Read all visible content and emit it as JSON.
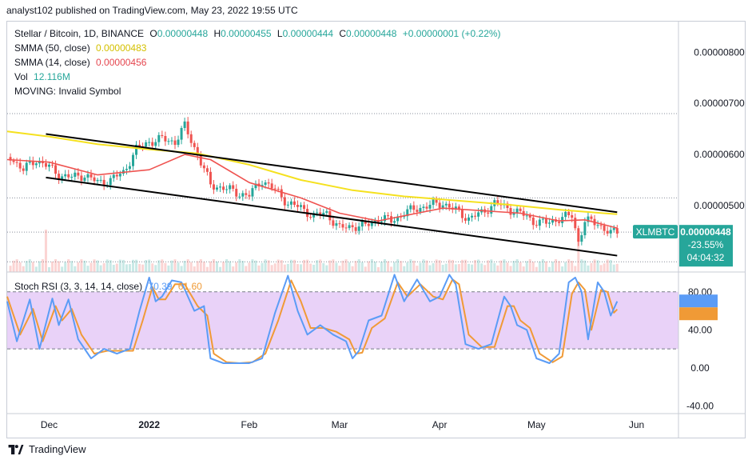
{
  "header": {
    "text": "analyst102 published on TradingView.com, May 23, 2022 19:55 UTC"
  },
  "legend": {
    "symbol": "Stellar / Bitcoin, 1D, BINANCE",
    "o_label": "O",
    "o": "0.00000448",
    "h_label": "H",
    "h": "0.00000455",
    "l_label": "L",
    "l": "0.00000444",
    "c_label": "C",
    "c": "0.00000448",
    "change": "+0.00000001 (+0.22%)",
    "sma50_label": "SMMA (50, close)",
    "sma50": "0.00000483",
    "sma14_label": "SMMA (14, close)",
    "sma14": "0.00000456",
    "vol_label": "Vol",
    "vol": "12.116M",
    "moving": "MOVING: Invalid Symbol"
  },
  "stoch_legend": {
    "label": "Stoch RSI (3, 3, 14, 14, close)",
    "k": "70.39",
    "d": "61.60"
  },
  "price_tag": {
    "symbol": "XLMBTC",
    "price": "0.00000448",
    "change": "-23.55%",
    "countdown": "04:04:32"
  },
  "footer": {
    "brand": "TradingView"
  },
  "colors": {
    "up": "#26a69a",
    "down": "#ef5350",
    "sma50": "#f5e11f",
    "sma14": "#ef5350",
    "stoch_k": "#5b9cf6",
    "stoch_d": "#f09a36",
    "stoch_band": "#e1c3f5"
  },
  "chart_data": [
    {
      "type": "candlestick",
      "y_ticks": [
        "0.00000800",
        "0.00000700",
        "0.00000600",
        "0.00000500"
      ],
      "y_tick_values": [
        8e-06,
        7e-06,
        6e-06,
        5e-06
      ],
      "ylim": [
        3.7e-06,
        8.6e-06
      ],
      "x_ticks": [
        "Dec",
        "2022",
        "Feb",
        "Mar",
        "Apr",
        "May",
        "Jun"
      ],
      "x_tick_days": [
        0,
        31,
        62,
        90,
        121,
        151,
        182
      ],
      "xlim": [
        -13,
        195
      ],
      "close_series": [
        [
          -12,
          5.95e-06
        ],
        [
          -8,
          5.7e-06
        ],
        [
          -4,
          5.9e-06
        ],
        [
          0,
          5.75e-06
        ],
        [
          3,
          5.6e-06
        ],
        [
          7,
          5.55e-06
        ],
        [
          11,
          5.6e-06
        ],
        [
          15,
          5.45e-06
        ],
        [
          19,
          5.5e-06
        ],
        [
          23,
          5.65e-06
        ],
        [
          27,
          6.1e-06
        ],
        [
          31,
          6.25e-06
        ],
        [
          35,
          6.3e-06
        ],
        [
          39,
          6.25e-06
        ],
        [
          42,
          6.55e-06
        ],
        [
          46,
          6e-06
        ],
        [
          50,
          5.4e-06
        ],
        [
          54,
          5.35e-06
        ],
        [
          58,
          5.25e-06
        ],
        [
          62,
          5.2e-06
        ],
        [
          66,
          5.5e-06
        ],
        [
          70,
          5.3e-06
        ],
        [
          74,
          5.05e-06
        ],
        [
          78,
          4.95e-06
        ],
        [
          82,
          4.8e-06
        ],
        [
          86,
          4.85e-06
        ],
        [
          90,
          4.55e-06
        ],
        [
          94,
          4.6e-06
        ],
        [
          98,
          4.6e-06
        ],
        [
          102,
          4.75e-06
        ],
        [
          106,
          4.7e-06
        ],
        [
          110,
          4.85e-06
        ],
        [
          114,
          4.95e-06
        ],
        [
          118,
          5e-06
        ],
        [
          122,
          5.05e-06
        ],
        [
          126,
          4.9e-06
        ],
        [
          130,
          4.75e-06
        ],
        [
          134,
          4.85e-06
        ],
        [
          138,
          5.05e-06
        ],
        [
          142,
          4.95e-06
        ],
        [
          146,
          4.85e-06
        ],
        [
          150,
          4.7e-06
        ],
        [
          154,
          4.65e-06
        ],
        [
          158,
          4.75e-06
        ],
        [
          162,
          4.8e-06
        ],
        [
          164,
          4.3e-06
        ],
        [
          166,
          4.7e-06
        ],
        [
          170,
          4.65e-06
        ],
        [
          174,
          4.45e-06
        ],
        [
          176,
          4.48e-06
        ]
      ],
      "sma50_series": [
        [
          -13,
          6.45e-06
        ],
        [
          0,
          6.35e-06
        ],
        [
          15,
          6.2e-06
        ],
        [
          31,
          6.1e-06
        ],
        [
          46,
          6.02e-06
        ],
        [
          62,
          5.8e-06
        ],
        [
          78,
          5.5e-06
        ],
        [
          94,
          5.3e-06
        ],
        [
          110,
          5.18e-06
        ],
        [
          126,
          5.1e-06
        ],
        [
          142,
          5.02e-06
        ],
        [
          158,
          4.92e-06
        ],
        [
          176,
          4.83e-06
        ]
      ],
      "sma14_series": [
        [
          -13,
          5.9e-06
        ],
        [
          0,
          5.85e-06
        ],
        [
          15,
          5.6e-06
        ],
        [
          31,
          5.7e-06
        ],
        [
          42,
          6e-06
        ],
        [
          50,
          5.9e-06
        ],
        [
          62,
          5.45e-06
        ],
        [
          78,
          5.15e-06
        ],
        [
          90,
          4.85e-06
        ],
        [
          102,
          4.7e-06
        ],
        [
          114,
          4.85e-06
        ],
        [
          122,
          4.95e-06
        ],
        [
          134,
          4.9e-06
        ],
        [
          146,
          4.85e-06
        ],
        [
          158,
          4.7e-06
        ],
        [
          166,
          4.72e-06
        ],
        [
          176,
          4.56e-06
        ]
      ],
      "channel_upper": [
        [
          -1,
          6.4e-06
        ],
        [
          176,
          4.87e-06
        ]
      ],
      "channel_lower": [
        [
          -1,
          5.55e-06
        ],
        [
          176,
          4.02e-06
        ]
      ],
      "dotted_levels": [
        6.8e-06,
        5.15e-06,
        4.48e-06,
        3.9e-06
      ],
      "last_price": 4.48e-06
    },
    {
      "type": "line",
      "name": "Stoch RSI",
      "y_ticks": [
        "80.00",
        "40.00",
        "0.00",
        "-40.00"
      ],
      "y_tick_values": [
        80,
        40,
        0,
        -40
      ],
      "ylim": [
        -48,
        100
      ],
      "band": [
        20,
        80
      ],
      "k_series": [
        [
          -13,
          70
        ],
        [
          -10,
          28
        ],
        [
          -6,
          72
        ],
        [
          -3,
          20
        ],
        [
          1,
          73
        ],
        [
          3,
          45
        ],
        [
          6,
          72
        ],
        [
          9,
          30
        ],
        [
          13,
          10
        ],
        [
          17,
          20
        ],
        [
          21,
          15
        ],
        [
          25,
          20
        ],
        [
          28,
          60
        ],
        [
          31,
          95
        ],
        [
          33,
          70
        ],
        [
          35,
          75
        ],
        [
          38,
          92
        ],
        [
          41,
          90
        ],
        [
          45,
          60
        ],
        [
          48,
          65
        ],
        [
          50,
          10
        ],
        [
          54,
          5
        ],
        [
          58,
          5
        ],
        [
          62,
          5
        ],
        [
          66,
          10
        ],
        [
          70,
          58
        ],
        [
          74,
          97
        ],
        [
          77,
          60
        ],
        [
          80,
          35
        ],
        [
          84,
          45
        ],
        [
          88,
          35
        ],
        [
          92,
          28
        ],
        [
          94,
          10
        ],
        [
          96,
          18
        ],
        [
          99,
          50
        ],
        [
          103,
          55
        ],
        [
          107,
          98
        ],
        [
          110,
          70
        ],
        [
          114,
          93
        ],
        [
          118,
          70
        ],
        [
          121,
          75
        ],
        [
          124,
          98
        ],
        [
          126,
          88
        ],
        [
          129,
          25
        ],
        [
          133,
          20
        ],
        [
          137,
          25
        ],
        [
          141,
          75
        ],
        [
          143,
          65
        ],
        [
          145,
          45
        ],
        [
          148,
          40
        ],
        [
          151,
          10
        ],
        [
          155,
          5
        ],
        [
          158,
          15
        ],
        [
          161,
          90
        ],
        [
          163,
          95
        ],
        [
          165,
          80
        ],
        [
          167,
          30
        ],
        [
          170,
          90
        ],
        [
          172,
          80
        ],
        [
          174,
          55
        ],
        [
          176,
          70
        ]
      ],
      "d_series": [
        [
          -13,
          75
        ],
        [
          -9,
          35
        ],
        [
          -5,
          62
        ],
        [
          -2,
          28
        ],
        [
          2,
          65
        ],
        [
          4,
          50
        ],
        [
          7,
          62
        ],
        [
          10,
          35
        ],
        [
          14,
          15
        ],
        [
          18,
          18
        ],
        [
          22,
          18
        ],
        [
          26,
          18
        ],
        [
          29,
          50
        ],
        [
          32,
          85
        ],
        [
          34,
          72
        ],
        [
          36,
          72
        ],
        [
          39,
          88
        ],
        [
          42,
          88
        ],
        [
          46,
          65
        ],
        [
          49,
          55
        ],
        [
          51,
          15
        ],
        [
          55,
          6
        ],
        [
          59,
          5
        ],
        [
          63,
          6
        ],
        [
          67,
          15
        ],
        [
          71,
          50
        ],
        [
          75,
          92
        ],
        [
          78,
          70
        ],
        [
          81,
          42
        ],
        [
          85,
          42
        ],
        [
          89,
          38
        ],
        [
          93,
          30
        ],
        [
          95,
          15
        ],
        [
          97,
          16
        ],
        [
          100,
          42
        ],
        [
          104,
          52
        ],
        [
          108,
          90
        ],
        [
          111,
          75
        ],
        [
          115,
          88
        ],
        [
          119,
          75
        ],
        [
          122,
          72
        ],
        [
          125,
          93
        ],
        [
          127,
          88
        ],
        [
          130,
          35
        ],
        [
          134,
          22
        ],
        [
          138,
          22
        ],
        [
          142,
          65
        ],
        [
          144,
          65
        ],
        [
          146,
          50
        ],
        [
          149,
          42
        ],
        [
          152,
          15
        ],
        [
          156,
          6
        ],
        [
          159,
          12
        ],
        [
          162,
          78
        ],
        [
          164,
          90
        ],
        [
          166,
          82
        ],
        [
          168,
          40
        ],
        [
          171,
          82
        ],
        [
          173,
          80
        ],
        [
          175,
          58
        ],
        [
          176,
          61.6
        ]
      ],
      "last_k": 70.39,
      "last_d": 61.6
    }
  ]
}
